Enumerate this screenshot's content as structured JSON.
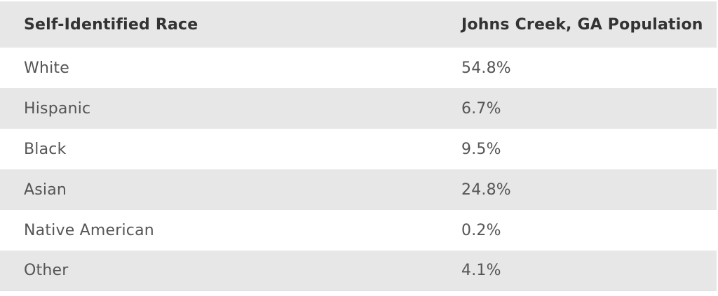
{
  "table": {
    "headers": [
      "Self-Identified Race",
      "Johns Creek, GA Population"
    ],
    "rows": [
      {
        "race": "White",
        "population": "54.8%"
      },
      {
        "race": "Hispanic",
        "population": "6.7%"
      },
      {
        "race": "Black",
        "population": "9.5%"
      },
      {
        "race": "Asian",
        "population": "24.8%"
      },
      {
        "race": "Native American",
        "population": "0.2%"
      },
      {
        "race": "Other",
        "population": "4.1%"
      }
    ]
  },
  "colors": {
    "stripe": "#e7e7e7",
    "background": "#ffffff",
    "header_text": "#333333",
    "body_text": "#555555"
  }
}
